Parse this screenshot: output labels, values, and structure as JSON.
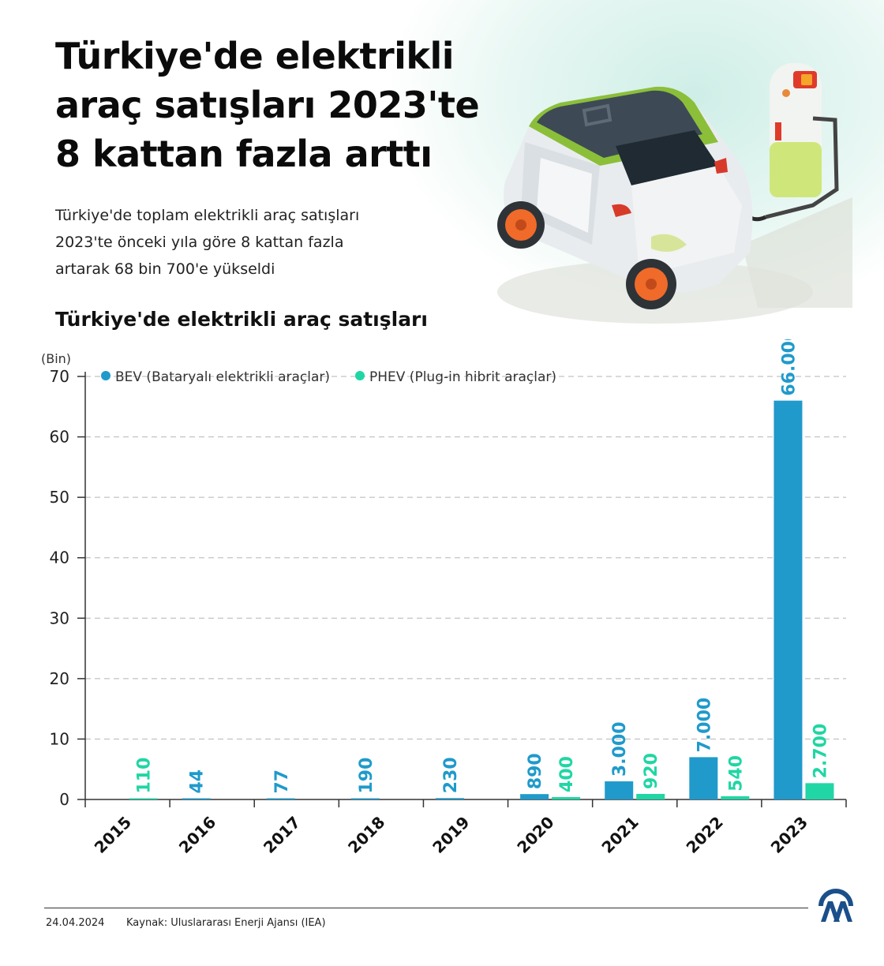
{
  "header": {
    "title": "Türkiye'de elektrikli\naraç satışları 2023'te\n8 kattan fazla arttı",
    "subtitle": "Türkiye'de toplam elektrikli araç satışları\n2023'te önceki yıla göre 8 kattan fazla\nartarak 68 bin 700'e yükseldi",
    "chart_heading": "Türkiye'de elektrikli araç satışları"
  },
  "colors": {
    "bev": "#1f9acb",
    "phev": "#1fd6a4",
    "grid": "#b5b5b5",
    "axis": "#333333"
  },
  "chart_data": {
    "type": "bar",
    "title": "Türkiye'de elektrikli araç satışları",
    "ylabel": "(Bin)",
    "xlabel": "",
    "ylim": [
      0,
      70
    ],
    "yticks": [
      0,
      10,
      20,
      30,
      40,
      50,
      60,
      70
    ],
    "grid": true,
    "legend_position": "top",
    "categories": [
      "2015",
      "2016",
      "2017",
      "2018",
      "2019",
      "2020",
      "2021",
      "2022",
      "2023"
    ],
    "series": [
      {
        "name": "BEV (Bataryalı elektrikli araçlar)",
        "values": [
          null,
          0.044,
          0.077,
          0.19,
          0.23,
          0.89,
          3.0,
          7.0,
          66.0
        ],
        "labels": [
          "",
          "44",
          "77",
          "190",
          "230",
          "890",
          "3.000",
          "7.000",
          "66.000"
        ]
      },
      {
        "name": "PHEV (Plug-in hibrit araçlar)",
        "values": [
          0.11,
          null,
          null,
          null,
          null,
          0.4,
          0.92,
          0.54,
          2.7
        ],
        "labels": [
          "110",
          "",
          "",
          "",
          "",
          "400",
          "920",
          "540",
          "2.700"
        ]
      }
    ]
  },
  "footer": {
    "date": "24.04.2024",
    "source": "Kaynak: Uluslararası Enerji Ajansı (IEA)"
  },
  "icons": {
    "illustration": "electric-car-charging-illustration",
    "logo": "aa-logo"
  }
}
